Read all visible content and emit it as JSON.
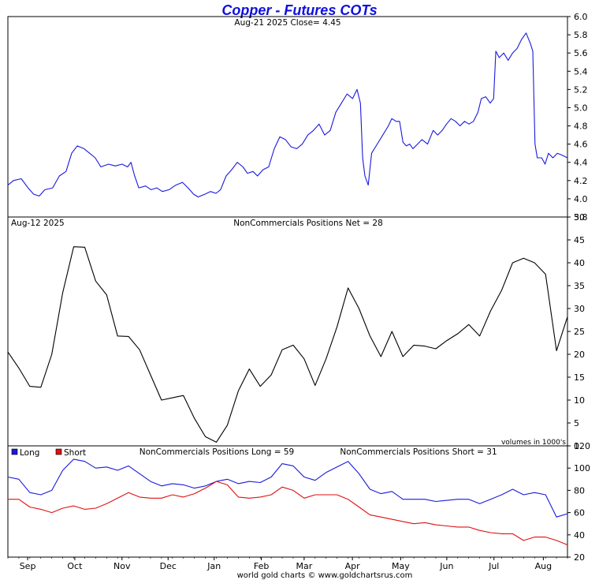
{
  "title": "Copper - Futures COTs",
  "footer": "world gold charts © www.goldchartsrus.com",
  "colors": {
    "price_line": "#1a1adc",
    "net_line": "#000000",
    "long_line": "#1a1adc",
    "short_line": "#e01010",
    "frame": "#000000",
    "title": "#1010e0"
  },
  "chart_data": [
    {
      "type": "line",
      "name": "price",
      "header": "Aug-21  2025   Close= 4.45",
      "ylim": [
        3.8,
        6.0
      ],
      "yticks": [
        3.8,
        4.0,
        4.2,
        4.4,
        4.6,
        4.8,
        5.0,
        5.2,
        5.4,
        5.6,
        5.8,
        6.0
      ],
      "ytick_labels": [
        "3.8",
        "4.0",
        "4.2",
        "4.4",
        "4.6",
        "4.8",
        "5.0",
        "5.2",
        "5.4",
        "5.6",
        "5.8",
        "6.0"
      ],
      "xlim": [
        0,
        50
      ],
      "anchors": [
        [
          0,
          4.15
        ],
        [
          0.5,
          4.2
        ],
        [
          1.2,
          4.22
        ],
        [
          1.8,
          4.12
        ],
        [
          2.3,
          4.05
        ],
        [
          2.8,
          4.03
        ],
        [
          3.3,
          4.1
        ],
        [
          4.0,
          4.12
        ],
        [
          4.6,
          4.25
        ],
        [
          5.2,
          4.3
        ],
        [
          5.7,
          4.5
        ],
        [
          6.2,
          4.58
        ],
        [
          6.8,
          4.55
        ],
        [
          7.3,
          4.5
        ],
        [
          7.8,
          4.45
        ],
        [
          8.3,
          4.35
        ],
        [
          9.0,
          4.38
        ],
        [
          9.6,
          4.36
        ],
        [
          10.2,
          4.38
        ],
        [
          10.7,
          4.35
        ],
        [
          11.0,
          4.4
        ],
        [
          11.3,
          4.26
        ],
        [
          11.7,
          4.12
        ],
        [
          12.3,
          4.14
        ],
        [
          12.8,
          4.1
        ],
        [
          13.3,
          4.12
        ],
        [
          13.8,
          4.08
        ],
        [
          14.4,
          4.1
        ],
        [
          15.0,
          4.15
        ],
        [
          15.6,
          4.18
        ],
        [
          16.1,
          4.12
        ],
        [
          16.6,
          4.05
        ],
        [
          17.0,
          4.02
        ],
        [
          17.6,
          4.05
        ],
        [
          18.1,
          4.08
        ],
        [
          18.6,
          4.06
        ],
        [
          19.0,
          4.1
        ],
        [
          19.5,
          4.25
        ],
        [
          20.0,
          4.32
        ],
        [
          20.5,
          4.4
        ],
        [
          21.0,
          4.35
        ],
        [
          21.4,
          4.28
        ],
        [
          21.9,
          4.3
        ],
        [
          22.3,
          4.25
        ],
        [
          22.8,
          4.32
        ],
        [
          23.3,
          4.35
        ],
        [
          23.8,
          4.55
        ],
        [
          24.3,
          4.68
        ],
        [
          24.8,
          4.65
        ],
        [
          25.3,
          4.57
        ],
        [
          25.8,
          4.55
        ],
        [
          26.3,
          4.6
        ],
        [
          26.8,
          4.7
        ],
        [
          27.3,
          4.75
        ],
        [
          27.8,
          4.82
        ],
        [
          28.3,
          4.7
        ],
        [
          28.8,
          4.75
        ],
        [
          29.3,
          4.95
        ],
        [
          29.8,
          5.05
        ],
        [
          30.3,
          5.15
        ],
        [
          30.8,
          5.1
        ],
        [
          31.2,
          5.2
        ],
        [
          31.5,
          5.05
        ],
        [
          31.7,
          4.45
        ],
        [
          31.9,
          4.25
        ],
        [
          32.2,
          4.15
        ],
        [
          32.5,
          4.5
        ],
        [
          33.0,
          4.6
        ],
        [
          33.5,
          4.7
        ],
        [
          34.0,
          4.8
        ],
        [
          34.3,
          4.88
        ],
        [
          34.7,
          4.85
        ],
        [
          35.0,
          4.85
        ],
        [
          35.3,
          4.62
        ],
        [
          35.6,
          4.58
        ],
        [
          35.9,
          4.6
        ],
        [
          36.2,
          4.55
        ],
        [
          36.6,
          4.6
        ],
        [
          37.0,
          4.65
        ],
        [
          37.5,
          4.6
        ],
        [
          38.0,
          4.75
        ],
        [
          38.4,
          4.7
        ],
        [
          38.8,
          4.75
        ],
        [
          39.2,
          4.82
        ],
        [
          39.6,
          4.88
        ],
        [
          40.0,
          4.85
        ],
        [
          40.4,
          4.8
        ],
        [
          40.8,
          4.85
        ],
        [
          41.2,
          4.82
        ],
        [
          41.6,
          4.85
        ],
        [
          42.0,
          4.95
        ],
        [
          42.3,
          5.1
        ],
        [
          42.7,
          5.12
        ],
        [
          43.1,
          5.05
        ],
        [
          43.4,
          5.1
        ],
        [
          43.6,
          5.62
        ],
        [
          43.9,
          5.55
        ],
        [
          44.3,
          5.6
        ],
        [
          44.7,
          5.52
        ],
        [
          45.1,
          5.6
        ],
        [
          45.5,
          5.65
        ],
        [
          45.9,
          5.75
        ],
        [
          46.3,
          5.82
        ],
        [
          46.7,
          5.7
        ],
        [
          46.9,
          5.62
        ],
        [
          47.1,
          4.6
        ],
        [
          47.3,
          4.45
        ],
        [
          47.7,
          4.45
        ],
        [
          48.0,
          4.38
        ],
        [
          48.3,
          4.5
        ],
        [
          48.7,
          4.45
        ],
        [
          49.1,
          4.5
        ],
        [
          49.5,
          4.48
        ],
        [
          50.0,
          4.45
        ]
      ]
    },
    {
      "type": "line",
      "name": "net",
      "header_left": "Aug-12  2025",
      "header_center": "NonCommercials Positions Net = 28",
      "footnote": "volumes in 1000's",
      "ylim": [
        0,
        50
      ],
      "yticks": [
        0,
        5,
        10,
        15,
        20,
        25,
        30,
        35,
        40,
        45,
        50
      ],
      "ytick_labels": [
        "0",
        "5",
        "10",
        "15",
        "20",
        "25",
        "30",
        "35",
        "40",
        "45",
        "50"
      ],
      "xlim": [
        0,
        50
      ],
      "points": [
        [
          0,
          20.5
        ],
        [
          1,
          17
        ],
        [
          2,
          13
        ],
        [
          3,
          12.8
        ],
        [
          4,
          20
        ],
        [
          5,
          33.5
        ],
        [
          6,
          43.5
        ],
        [
          7,
          43.4
        ],
        [
          8,
          36
        ],
        [
          9,
          33
        ],
        [
          10,
          24
        ],
        [
          11,
          23.9
        ],
        [
          12,
          21
        ],
        [
          13,
          15.5
        ],
        [
          14,
          10
        ],
        [
          15,
          10.5
        ],
        [
          16,
          11
        ],
        [
          17,
          6
        ],
        [
          18,
          2
        ],
        [
          19,
          0.8
        ],
        [
          20,
          4.5
        ],
        [
          21,
          12
        ],
        [
          22,
          16.8
        ],
        [
          23,
          13
        ],
        [
          24,
          15.5
        ],
        [
          25,
          21
        ],
        [
          26,
          22
        ],
        [
          27,
          19
        ],
        [
          28,
          13.2
        ],
        [
          29,
          19
        ],
        [
          30,
          26
        ],
        [
          31,
          34.5
        ],
        [
          32,
          30
        ],
        [
          33,
          24
        ],
        [
          34,
          19.5
        ],
        [
          35,
          25
        ],
        [
          36,
          19.5
        ],
        [
          37,
          22
        ],
        [
          38,
          21.8
        ],
        [
          39,
          21.2
        ],
        [
          40,
          23
        ],
        [
          41,
          24.5
        ],
        [
          42,
          26.5
        ],
        [
          43,
          24
        ],
        [
          44,
          29.5
        ],
        [
          45,
          34
        ],
        [
          46,
          40
        ],
        [
          47,
          41
        ],
        [
          48,
          40
        ],
        [
          49,
          37.5
        ],
        [
          50,
          20.8
        ],
        [
          51,
          28.2
        ]
      ],
      "xmax": 51
    },
    {
      "type": "line",
      "name": "long_short",
      "legend": [
        "Long",
        "Short"
      ],
      "header_long": "NonCommercials Positions Long = 59",
      "header_short": "NonCommercials Positions Short = 31",
      "ylim": [
        20,
        120
      ],
      "yticks": [
        20,
        40,
        60,
        80,
        100,
        120
      ],
      "ytick_labels": [
        "20",
        "40",
        "60",
        "80",
        "100",
        "120"
      ],
      "x_tick_labels": [
        "Sep",
        "Oct",
        "Nov",
        "Dec",
        "Jan",
        "Feb",
        "Mar",
        "Apr",
        "May",
        "Jun",
        "Jul",
        "Aug"
      ],
      "x_tick_positions": [
        1.8,
        6.1,
        10.4,
        14.6,
        18.8,
        23.1,
        27.0,
        31.4,
        35.8,
        40.0,
        44.3,
        48.8
      ],
      "xmax": 51,
      "series": [
        {
          "name": "Long",
          "points": [
            [
              0,
              92
            ],
            [
              1,
              90
            ],
            [
              2,
              78
            ],
            [
              3,
              76
            ],
            [
              4,
              80
            ],
            [
              5,
              98
            ],
            [
              6,
              108
            ],
            [
              7,
              106
            ],
            [
              8,
              100
            ],
            [
              9,
              101
            ],
            [
              10,
              98
            ],
            [
              11,
              102
            ],
            [
              12,
              95
            ],
            [
              13,
              88
            ],
            [
              14,
              84
            ],
            [
              15,
              86
            ],
            [
              16,
              85
            ],
            [
              17,
              82
            ],
            [
              18,
              84
            ],
            [
              19,
              88
            ],
            [
              20,
              90
            ],
            [
              21,
              86
            ],
            [
              22,
              88
            ],
            [
              23,
              87
            ],
            [
              24,
              92
            ],
            [
              25,
              104
            ],
            [
              26,
              102
            ],
            [
              27,
              92
            ],
            [
              28,
              89
            ],
            [
              29,
              96
            ],
            [
              30,
              101
            ],
            [
              31,
              106
            ],
            [
              32,
              95
            ],
            [
              33,
              81
            ],
            [
              34,
              77
            ],
            [
              35,
              79
            ],
            [
              36,
              72
            ],
            [
              37,
              72
            ],
            [
              38,
              72
            ],
            [
              39,
              70
            ],
            [
              40,
              71
            ],
            [
              41,
              72
            ],
            [
              42,
              72
            ],
            [
              43,
              68
            ],
            [
              44,
              72
            ],
            [
              45,
              76
            ],
            [
              46,
              81
            ],
            [
              47,
              76
            ],
            [
              48,
              78
            ],
            [
              49,
              76
            ],
            [
              50,
              56
            ],
            [
              51,
              59
            ]
          ]
        },
        {
          "name": "Short",
          "points": [
            [
              0,
              72
            ],
            [
              1,
              72
            ],
            [
              2,
              65
            ],
            [
              3,
              63
            ],
            [
              4,
              60
            ],
            [
              5,
              64
            ],
            [
              6,
              66
            ],
            [
              7,
              63
            ],
            [
              8,
              64
            ],
            [
              9,
              68
            ],
            [
              10,
              73
            ],
            [
              11,
              78
            ],
            [
              12,
              74
            ],
            [
              13,
              73
            ],
            [
              14,
              73
            ],
            [
              15,
              76
            ],
            [
              16,
              74
            ],
            [
              17,
              77
            ],
            [
              18,
              82
            ],
            [
              19,
              88
            ],
            [
              20,
              85
            ],
            [
              21,
              74
            ],
            [
              22,
              73
            ],
            [
              23,
              74
            ],
            [
              24,
              76
            ],
            [
              25,
              83
            ],
            [
              26,
              80
            ],
            [
              27,
              73
            ],
            [
              28,
              76
            ],
            [
              29,
              76
            ],
            [
              30,
              76
            ],
            [
              31,
              72
            ],
            [
              32,
              65
            ],
            [
              33,
              58
            ],
            [
              34,
              56
            ],
            [
              35,
              54
            ],
            [
              36,
              52
            ],
            [
              37,
              50
            ],
            [
              38,
              51
            ],
            [
              39,
              49
            ],
            [
              40,
              48
            ],
            [
              41,
              47
            ],
            [
              42,
              47
            ],
            [
              43,
              44
            ],
            [
              44,
              42
            ],
            [
              45,
              41
            ],
            [
              46,
              41
            ],
            [
              47,
              35
            ],
            [
              48,
              38
            ],
            [
              49,
              38
            ],
            [
              50,
              35
            ],
            [
              51,
              31
            ]
          ]
        }
      ]
    }
  ]
}
